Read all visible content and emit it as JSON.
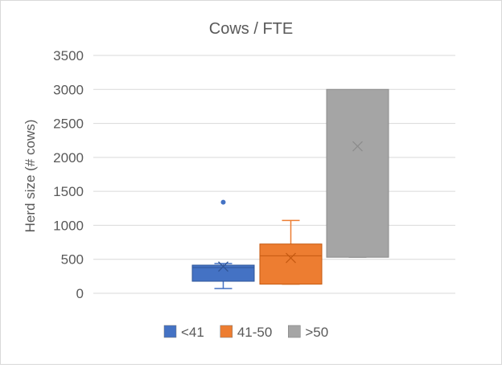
{
  "chart_data": {
    "type": "box",
    "title": "Cows / FTE",
    "ylabel": "Herd size (# cows)",
    "xlabel": "",
    "ylim": [
      0,
      3500
    ],
    "yticks": [
      0,
      500,
      1000,
      1500,
      2000,
      2500,
      3000,
      3500
    ],
    "grid": true,
    "legend_position": "bottom",
    "series": [
      {
        "name": "<41",
        "color": "#4472c4",
        "min": 70,
        "q1": 177,
        "median": 378,
        "q3": 414,
        "max": 437,
        "mean": 393,
        "outliers": [
          1340
        ]
      },
      {
        "name": "41-50",
        "color": "#ed7d31",
        "min": 134,
        "q1": 134,
        "median": 552,
        "q3": 725,
        "max": 1072,
        "mean": 520,
        "outliers": []
      },
      {
        "name": ">50",
        "color": "#a5a5a5",
        "min": 530,
        "q1": 530,
        "median": null,
        "q3": 3000,
        "max": 3000,
        "mean": 2163,
        "outliers": []
      }
    ]
  }
}
